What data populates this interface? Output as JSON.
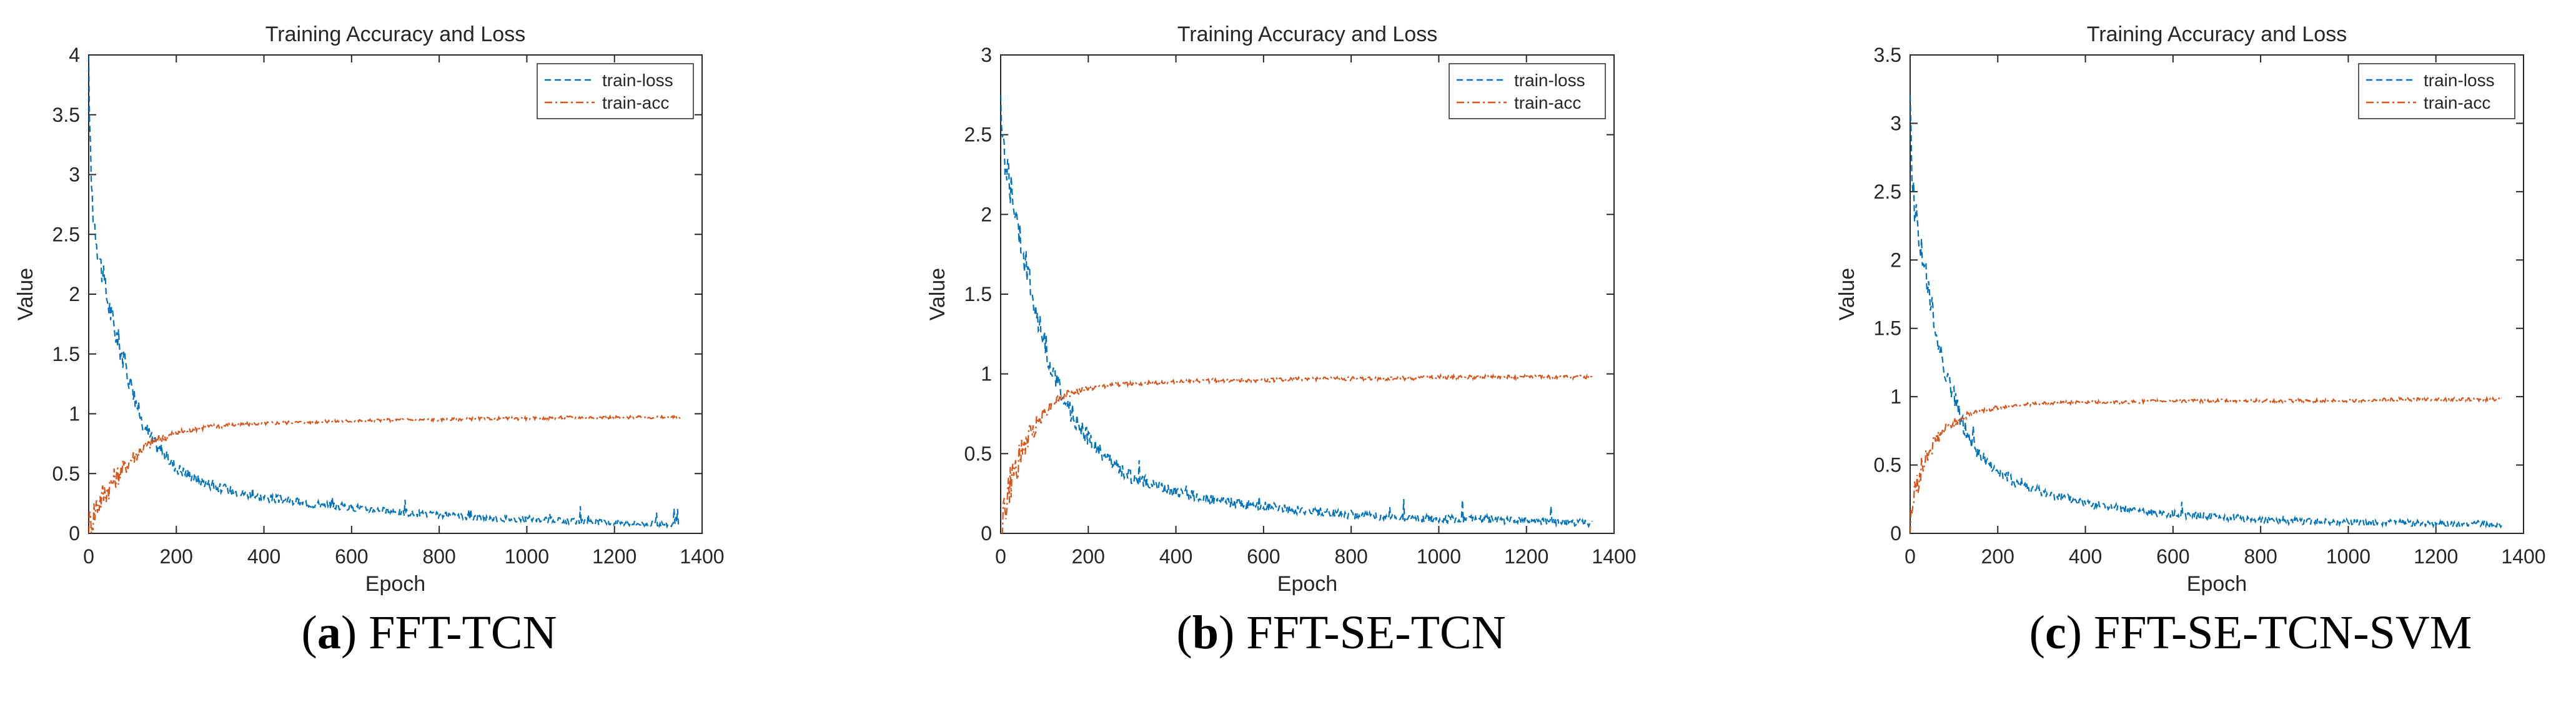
{
  "chart_data": [
    {
      "type": "line",
      "title": "Training  Accuracy and Loss",
      "xlabel": "Epoch",
      "ylabel": "Value",
      "xlim": [
        0,
        1400
      ],
      "ylim": [
        0,
        4
      ],
      "xticks": [
        0,
        200,
        400,
        600,
        800,
        1000,
        1200,
        1400
      ],
      "yticks": [
        0,
        0.5,
        1,
        1.5,
        2,
        2.5,
        3,
        3.5,
        4
      ],
      "legend_position": "top-right",
      "caption_letter": "a",
      "caption_text": "FFT-TCN",
      "series": [
        {
          "name": "train-loss",
          "color": "#0072BD",
          "style": "dashed",
          "x": [
            0,
            5,
            10,
            20,
            40,
            60,
            80,
            100,
            120,
            150,
            200,
            250,
            300,
            400,
            500,
            600,
            700,
            800,
            900,
            1000,
            1100,
            1200,
            1300,
            1350
          ],
          "y": [
            3.9,
            3.0,
            2.7,
            2.4,
            2.0,
            1.7,
            1.45,
            1.2,
            0.95,
            0.75,
            0.55,
            0.45,
            0.38,
            0.3,
            0.25,
            0.22,
            0.18,
            0.15,
            0.13,
            0.12,
            0.1,
            0.09,
            0.08,
            0.07
          ]
        },
        {
          "name": "train-acc",
          "color": "#D95319",
          "style": "dashdot",
          "x": [
            0,
            10,
            20,
            40,
            60,
            80,
            100,
            120,
            150,
            200,
            250,
            300,
            400,
            500,
            600,
            700,
            800,
            900,
            1000,
            1100,
            1200,
            1300,
            1350
          ],
          "y": [
            0.05,
            0.15,
            0.25,
            0.36,
            0.46,
            0.55,
            0.63,
            0.7,
            0.77,
            0.84,
            0.88,
            0.9,
            0.92,
            0.93,
            0.94,
            0.95,
            0.95,
            0.96,
            0.96,
            0.97,
            0.97,
            0.97,
            0.97
          ]
        }
      ]
    },
    {
      "type": "line",
      "title": "Training  Accuracy and Loss",
      "xlabel": "Epoch",
      "ylabel": "Value",
      "xlim": [
        0,
        1400
      ],
      "ylim": [
        0,
        3
      ],
      "xticks": [
        0,
        200,
        400,
        600,
        800,
        1000,
        1200,
        1400
      ],
      "yticks": [
        0,
        0.5,
        1,
        1.5,
        2,
        2.5,
        3
      ],
      "legend_position": "top-right",
      "caption_letter": "b",
      "caption_text": "FFT-SE-TCN",
      "series": [
        {
          "name": "train-loss",
          "color": "#0072BD",
          "style": "dashed",
          "x": [
            0,
            5,
            10,
            20,
            40,
            60,
            80,
            100,
            120,
            150,
            200,
            250,
            300,
            400,
            500,
            600,
            700,
            800,
            900,
            1000,
            1100,
            1200,
            1300,
            1350
          ],
          "y": [
            2.65,
            2.45,
            2.35,
            2.2,
            1.95,
            1.65,
            1.4,
            1.2,
            1.0,
            0.8,
            0.6,
            0.45,
            0.35,
            0.26,
            0.2,
            0.17,
            0.14,
            0.12,
            0.1,
            0.09,
            0.09,
            0.08,
            0.07,
            0.06
          ]
        },
        {
          "name": "train-acc",
          "color": "#D95319",
          "style": "dashdot",
          "x": [
            0,
            10,
            20,
            40,
            60,
            80,
            100,
            120,
            150,
            200,
            250,
            300,
            400,
            500,
            600,
            700,
            800,
            900,
            1000,
            1100,
            1200,
            1300,
            1350
          ],
          "y": [
            0.02,
            0.15,
            0.28,
            0.45,
            0.58,
            0.68,
            0.76,
            0.82,
            0.87,
            0.91,
            0.93,
            0.94,
            0.95,
            0.96,
            0.96,
            0.97,
            0.97,
            0.97,
            0.98,
            0.98,
            0.98,
            0.98,
            0.98
          ]
        }
      ]
    },
    {
      "type": "line",
      "title": "Training  Accuracy and Loss",
      "xlabel": "Epoch",
      "ylabel": "Value",
      "xlim": [
        0,
        1400
      ],
      "ylim": [
        0,
        3.5
      ],
      "xticks": [
        0,
        200,
        400,
        600,
        800,
        1000,
        1200,
        1400
      ],
      "yticks": [
        0,
        0.5,
        1,
        1.5,
        2,
        2.5,
        3,
        3.5
      ],
      "legend_position": "top-right",
      "caption_letter": "c",
      "caption_text": "FFT-SE-TCN-SVM",
      "series": [
        {
          "name": "train-loss",
          "color": "#0072BD",
          "style": "dashed",
          "x": [
            0,
            5,
            10,
            20,
            40,
            60,
            80,
            100,
            120,
            150,
            200,
            250,
            300,
            400,
            500,
            600,
            700,
            800,
            900,
            1000,
            1100,
            1200,
            1300,
            1350
          ],
          "y": [
            3.1,
            2.6,
            2.4,
            2.2,
            1.8,
            1.45,
            1.2,
            1.0,
            0.8,
            0.6,
            0.45,
            0.36,
            0.3,
            0.22,
            0.17,
            0.14,
            0.12,
            0.1,
            0.09,
            0.08,
            0.08,
            0.07,
            0.07,
            0.06
          ]
        },
        {
          "name": "train-acc",
          "color": "#D95319",
          "style": "dashdot",
          "x": [
            0,
            10,
            20,
            40,
            60,
            80,
            100,
            120,
            150,
            200,
            250,
            300,
            400,
            500,
            600,
            700,
            800,
            900,
            1000,
            1100,
            1200,
            1300,
            1350
          ],
          "y": [
            0.08,
            0.28,
            0.42,
            0.58,
            0.69,
            0.76,
            0.81,
            0.85,
            0.89,
            0.92,
            0.94,
            0.95,
            0.96,
            0.96,
            0.97,
            0.97,
            0.97,
            0.97,
            0.97,
            0.98,
            0.98,
            0.98,
            0.98
          ]
        }
      ]
    }
  ]
}
